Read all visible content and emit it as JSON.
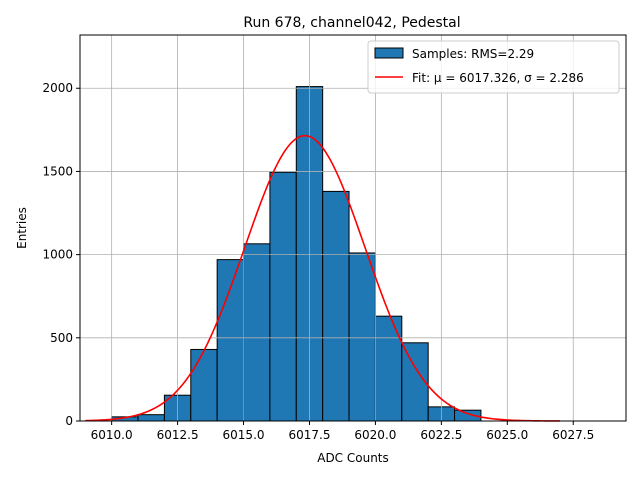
{
  "chart_data": {
    "type": "bar",
    "title": "Run 678, channel042, Pedestal",
    "xlabel": "ADC Counts",
    "ylabel": "Entries",
    "xlim": [
      6008.8,
      6029.5
    ],
    "ylim": [
      0,
      2320
    ],
    "grid": true,
    "legend_position": "top-right",
    "bar_color": "#1f77b4",
    "fit_color": "#ff0000",
    "x_ticks": [
      6010.0,
      6012.5,
      6015.0,
      6017.5,
      6020.0,
      6022.5,
      6025.0,
      6027.5
    ],
    "x_tick_labels": [
      "6010.0",
      "6012.5",
      "6015.0",
      "6017.5",
      "6020.0",
      "6022.5",
      "6025.0",
      "6027.5"
    ],
    "y_ticks": [
      0,
      500,
      1000,
      1500,
      2000
    ],
    "y_tick_labels": [
      "0",
      "500",
      "1000",
      "1500",
      "2000"
    ],
    "bins": [
      {
        "left": 6010.0,
        "right": 6011.0,
        "count": 25
      },
      {
        "left": 6011.0,
        "right": 6012.0,
        "count": 38
      },
      {
        "left": 6012.0,
        "right": 6013.0,
        "count": 155
      },
      {
        "left": 6013.0,
        "right": 6014.0,
        "count": 430
      },
      {
        "left": 6014.0,
        "right": 6015.0,
        "count": 970
      },
      {
        "left": 6015.0,
        "right": 6016.0,
        "count": 1065
      },
      {
        "left": 6016.0,
        "right": 6017.0,
        "count": 1495
      },
      {
        "left": 6017.0,
        "right": 6018.0,
        "count": 2010
      },
      {
        "left": 6018.0,
        "right": 6019.0,
        "count": 1380
      },
      {
        "left": 6019.0,
        "right": 6020.0,
        "count": 1010
      },
      {
        "left": 6020.0,
        "right": 6021.0,
        "count": 630
      },
      {
        "left": 6021.0,
        "right": 6022.0,
        "count": 470
      },
      {
        "left": 6022.0,
        "right": 6023.0,
        "count": 85
      },
      {
        "left": 6023.0,
        "right": 6024.0,
        "count": 65
      }
    ],
    "fit": {
      "mu": 6017.326,
      "sigma": 2.286,
      "amplitude": 1715,
      "x_range": [
        6009.0,
        6027.0
      ]
    },
    "legend": [
      {
        "kind": "patch",
        "label": "Samples: RMS=2.29"
      },
      {
        "kind": "line",
        "label": "Fit: μ = 6017.326, σ = 2.286"
      }
    ]
  }
}
